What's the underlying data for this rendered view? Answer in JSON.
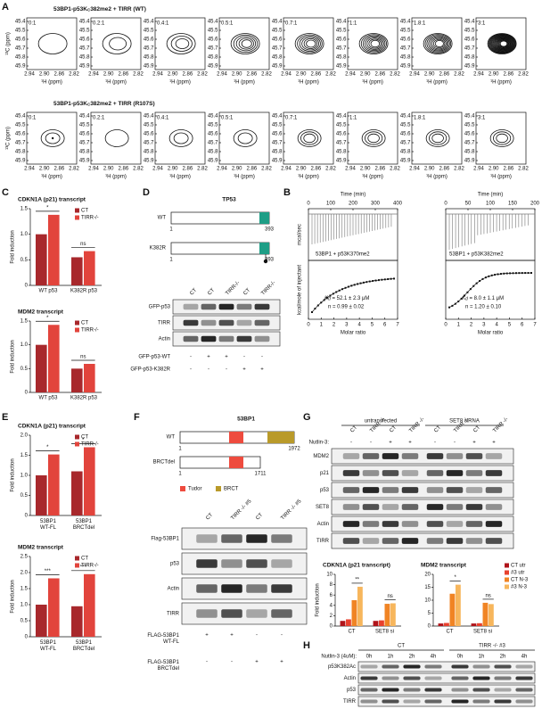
{
  "panel_labels": [
    "A",
    "B",
    "C",
    "D",
    "E",
    "F",
    "G",
    "H"
  ],
  "nmr": {
    "rows": [
      {
        "title_pre": "53BP1-p53K",
        "title_sub": "C",
        "title_post": "382me2 + TIRR (WT)"
      },
      {
        "title_pre": "53BP1-p53K",
        "title_sub": "C",
        "title_post": "382me2 + TIRR (R107S)"
      }
    ],
    "ratios": [
      "0:1",
      "0.2:1",
      "0.4:1",
      "0.5:1",
      "0.7:1",
      "1:1",
      "1.8:1",
      "3:1"
    ],
    "yticks": [
      "45.4",
      "45.5",
      "45.6",
      "45.7",
      "45.8",
      "45.9"
    ],
    "xticks": [
      "2.94",
      "2.90",
      "2.86",
      "2.82"
    ],
    "ylabel": "¹³C (ppm)",
    "xlabel": "¹H (ppm)"
  },
  "chart_data": [
    {
      "type": "bar",
      "title": "CDKN1A (p21) transcript",
      "ylabel": "Fold induction",
      "categories": [
        "WT p53",
        "K382R p53"
      ],
      "series": [
        {
          "name": "CT",
          "color": "#a8282c",
          "values": [
            1.0,
            0.55
          ]
        },
        {
          "name": "TIRR-/-",
          "color": "#e2443c",
          "values": [
            1.38,
            0.67
          ]
        }
      ],
      "ylim": [
        0,
        1.5
      ],
      "yticks": [
        0,
        0.5,
        {
          "value": 1,
          "label": "1.0"
        },
        1.5
      ],
      "significance": [
        "*",
        "ns"
      ],
      "legend": "top-right"
    },
    {
      "type": "bar",
      "title": "MDM2 transcript",
      "ylabel": "Fold induction",
      "categories": [
        "WT p53",
        "K382R p53"
      ],
      "series": [
        {
          "name": "CT",
          "color": "#a8282c",
          "values": [
            1.0,
            0.5
          ]
        },
        {
          "name": "TIRR-/-",
          "color": "#e2443c",
          "values": [
            1.42,
            0.6
          ]
        }
      ],
      "ylim": [
        0,
        1.5
      ],
      "yticks": [
        0,
        0.5,
        {
          "value": 1,
          "label": "1.0"
        },
        1.5
      ],
      "significance": [
        "*",
        "ns"
      ],
      "legend": "top-right"
    },
    {
      "type": "bar",
      "title": "CDKN1A (p21) transcript",
      "ylabel": "Fold induction",
      "categories": [
        "53BP1 WT-FL",
        "53BP1 BRCTdel"
      ],
      "series": [
        {
          "name": "CT",
          "color": "#a8282c",
          "values": [
            1.0,
            1.1
          ]
        },
        {
          "name": "TIRR-/-",
          "color": "#e2443c",
          "values": [
            1.52,
            1.7
          ]
        }
      ],
      "ylim": [
        0,
        2
      ],
      "yticks": [
        0,
        0.5,
        {
          "value": 1,
          "label": "1.0"
        },
        1.5,
        {
          "value": 2,
          "label": "2.0"
        }
      ],
      "significance": [
        "*",
        "*"
      ],
      "legend": "top-right"
    },
    {
      "type": "bar",
      "title": "MDM2 transcript",
      "ylabel": "Fold induction",
      "categories": [
        "53BP1 WT-FL",
        "53BP1 BRCTdel"
      ],
      "series": [
        {
          "name": "CT",
          "color": "#a8282c",
          "values": [
            1.0,
            0.95
          ]
        },
        {
          "name": "TIRR-/-",
          "color": "#e2443c",
          "values": [
            1.82,
            1.95
          ]
        }
      ],
      "ylim": [
        0,
        2.5
      ],
      "yticks": [
        0,
        0.5,
        {
          "value": 1,
          "label": "1.0"
        },
        1.5,
        {
          "value": 2,
          "label": "2.0"
        },
        2.5
      ],
      "significance": [
        "***",
        "***"
      ],
      "legend": "top-right"
    },
    {
      "type": "bar",
      "title": "CDKN1A (p21 transcript)",
      "ylabel": "Fold induction",
      "categories": [
        "CT",
        "SET8 si"
      ],
      "series": [
        {
          "name": "CT utr",
          "color": "#b0141a",
          "values": [
            1.0,
            1.0
          ]
        },
        {
          "name": "#3 utr",
          "color": "#e8412e",
          "values": [
            1.3,
            1.1
          ]
        },
        {
          "name": "CT N-3",
          "color": "#f08424",
          "values": [
            5.0,
            4.3
          ]
        },
        {
          "name": "#3 N-3",
          "color": "#f7b65c",
          "values": [
            7.6,
            4.4
          ]
        }
      ],
      "ylim": [
        0,
        10
      ],
      "yticks": [
        0,
        2,
        4,
        6,
        8,
        10
      ],
      "significance": [
        "**",
        "ns"
      ]
    },
    {
      "type": "bar",
      "title": "MDM2 transcript",
      "categories": [
        "CT",
        "SET8 si"
      ],
      "series": [
        {
          "name": "CT utr",
          "color": "#b0141a",
          "values": [
            1.0,
            1.0
          ]
        },
        {
          "name": "#3 utr",
          "color": "#e8412e",
          "values": [
            1.2,
            1.1
          ]
        },
        {
          "name": "CT N-3",
          "color": "#f08424",
          "values": [
            12.5,
            9.0
          ]
        },
        {
          "name": "#3 N-3",
          "color": "#f7b65c",
          "values": [
            16.0,
            8.5
          ]
        }
      ],
      "ylim": [
        0,
        20
      ],
      "yticks": [
        0,
        5,
        10,
        15,
        20
      ],
      "significance": [
        "*",
        "ns"
      ],
      "legend": "right"
    }
  ],
  "itc": [
    {
      "time_label": "Time (min)",
      "time_ticks": [
        "0",
        "100",
        "200",
        "300",
        "400"
      ],
      "ylabel_top": "mcal/sec",
      "ylabel_bottom": "kcal/mole of injectant",
      "xlabel": "Molar ratio",
      "ratio_ticks": [
        "0",
        "1",
        "2",
        "3",
        "4",
        "5",
        "6",
        "7"
      ],
      "sample": "53BP1 + p53K370me2",
      "kd_sym": "K",
      "kd_sub": "d",
      "kd_val": " = 52.1 ± 2.3 μM",
      "n": "n = 0.99 ± 0.02"
    },
    {
      "time_label": "Time (min)",
      "time_ticks": [
        "0",
        "50",
        "100",
        "150",
        "200"
      ],
      "xlabel": "Molar ratio",
      "ratio_ticks": [
        "0",
        "1",
        "2",
        "3",
        "4",
        "5",
        "6",
        "7"
      ],
      "sample": "53BP1 + p53K382me2",
      "kd_sym": "K",
      "kd_sub": "d",
      "kd_val": " = 8.0 ± 1.1 μM",
      "n": "n = 1.20 ± 0.10"
    }
  ],
  "tp53": {
    "title": "TP53",
    "constructs": [
      {
        "name": "WT",
        "start": "1",
        "end": "393"
      },
      {
        "name": "K382R",
        "start": "1",
        "end": "393"
      }
    ]
  },
  "blot_d": {
    "columns": [
      "CT",
      "CT",
      "TIRR-/-",
      "CT",
      "TIRR-/-"
    ],
    "rows": [
      "GFP-p53",
      "TIRR",
      "Actin"
    ],
    "conditions": [
      {
        "name": "GFP-p53-WT",
        "marks": [
          "-",
          "+",
          "+",
          "-",
          "-"
        ]
      },
      {
        "name": "GFP-p53-K382R",
        "marks": [
          "-",
          "-",
          "-",
          "+",
          "+"
        ]
      }
    ]
  },
  "bp53": {
    "title": "53BP1",
    "constructs": [
      {
        "name": "WT",
        "start": "1",
        "end": "1972"
      },
      {
        "name": "BRCTdel",
        "start": "1",
        "end": "1711"
      }
    ],
    "legend": [
      "Tudor",
      "BRCT"
    ]
  },
  "blot_f": {
    "columns": [
      "CT",
      "TIRR -/- #5",
      "CT",
      "TIRR -/- #5"
    ],
    "rows": [
      "Flag-53BP1",
      "p53",
      "Actin",
      "TIRR"
    ],
    "conditions": [
      {
        "name": "FLAG-53BP1 WT-FL",
        "marks": [
          "+",
          "+",
          "-",
          "-"
        ]
      },
      {
        "name": "FLAG-53BP1 BRCTdel",
        "marks": [
          "-",
          "-",
          "+",
          "+"
        ]
      }
    ]
  },
  "blot_g": {
    "groups": [
      "untransfected",
      "SET8 siRNA"
    ],
    "columns": [
      "CT",
      "TIRR -/-",
      "CT",
      "TIRR -/-",
      "CT",
      "TIRR -/-",
      "CT",
      "TIRR -/-"
    ],
    "rows": [
      "MDM2",
      "p21",
      "p53",
      "SET8",
      "Actin",
      "TIRR"
    ],
    "conditions": [
      {
        "name": "Nutlin-3:",
        "marks": [
          "-",
          "-",
          "+",
          "+",
          "-",
          "-",
          "+",
          "+"
        ]
      }
    ]
  },
  "blot_h": {
    "groups": [
      "CT",
      "TIRR -/- #3"
    ],
    "columns": [
      "0h",
      "1h",
      "2h",
      "4h",
      "0h",
      "1h",
      "2h",
      "4h"
    ],
    "treatment": "Nutlin-3 (4uM):",
    "rows": [
      "p53K382Ac",
      "Actin",
      "p53",
      "TIRR"
    ]
  }
}
